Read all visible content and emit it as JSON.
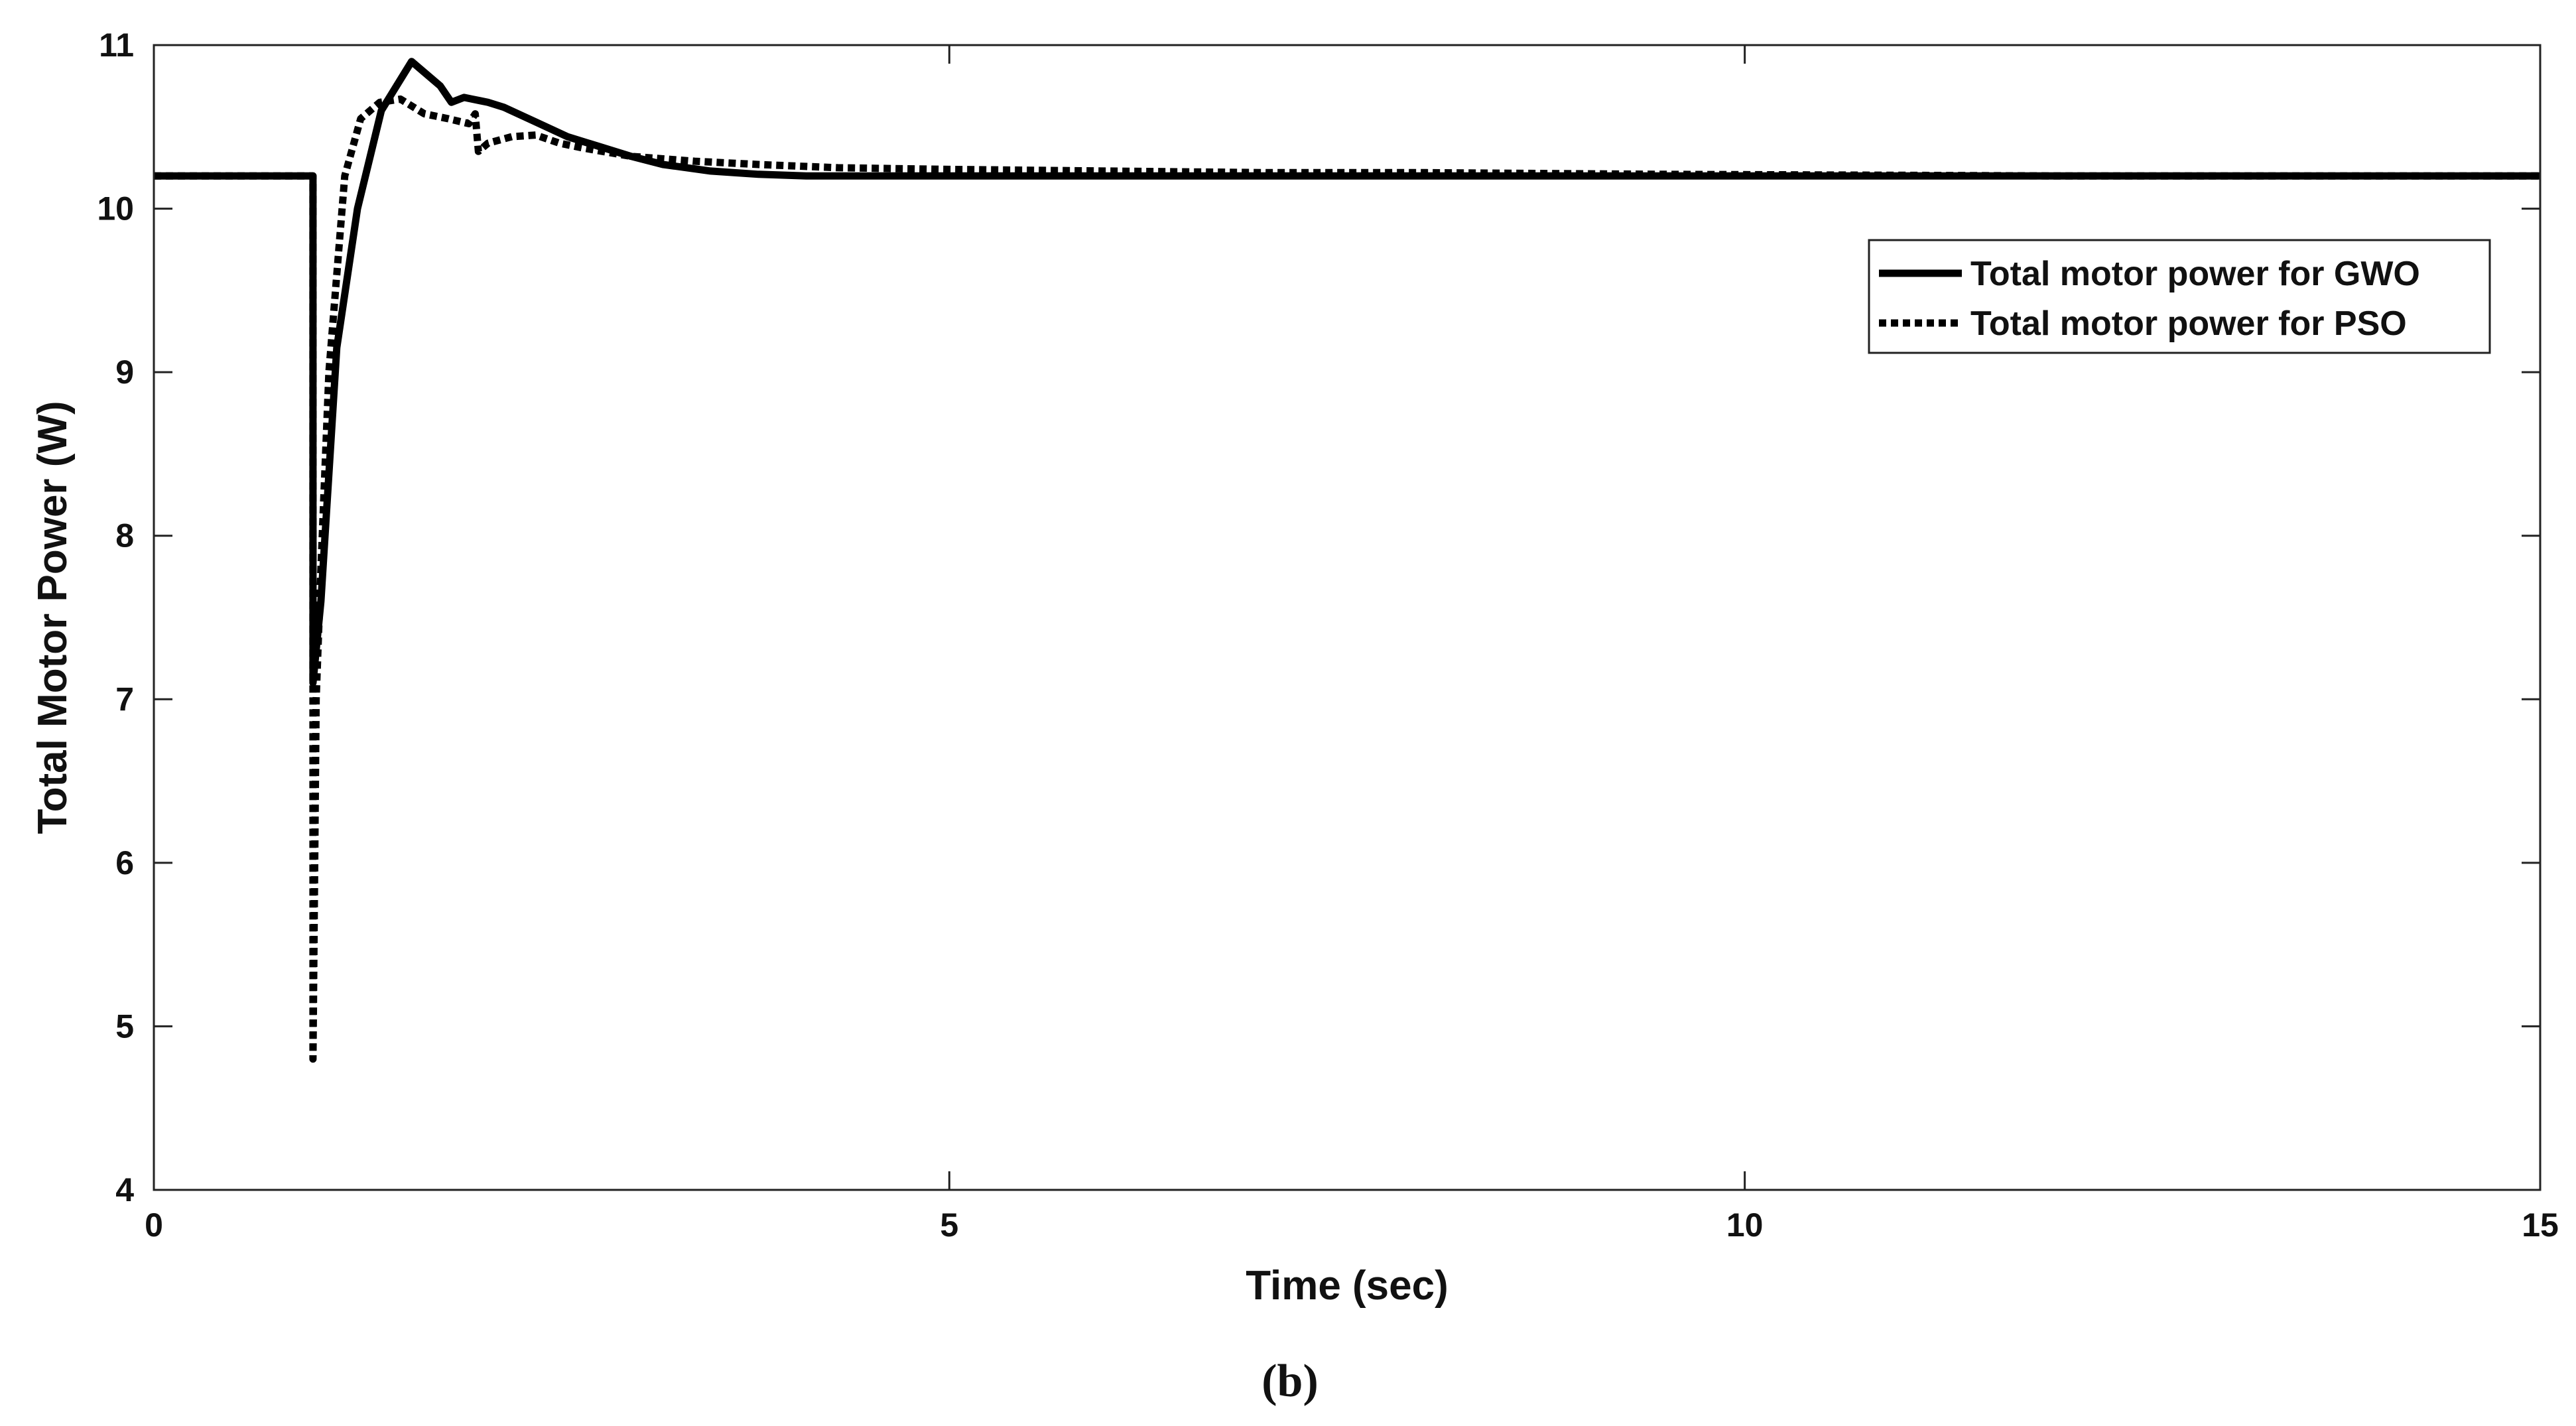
{
  "chart_data": {
    "type": "line",
    "title": "",
    "xlabel": "Time (sec)",
    "ylabel": "Total Motor Power (W)",
    "xlim": [
      0,
      15
    ],
    "ylim": [
      4,
      11
    ],
    "xticks": [
      0,
      5,
      10,
      15
    ],
    "yticks": [
      4,
      5,
      6,
      7,
      8,
      9,
      10,
      11
    ],
    "xtick_labels": [
      "0",
      "5",
      "10",
      "15"
    ],
    "ytick_labels": [
      "4",
      "5",
      "6",
      "7",
      "8",
      "9",
      "10",
      "11"
    ],
    "grid": false,
    "legend_position": "upper-right",
    "series": [
      {
        "name": "Total motor power for GWO",
        "style": "solid",
        "color": "#000000",
        "x": [
          0,
          1.0,
          1.0,
          1.05,
          1.15,
          1.28,
          1.43,
          1.62,
          1.8,
          1.87,
          1.95,
          2.0,
          2.05,
          2.1,
          2.2,
          2.4,
          2.6,
          2.8,
          3.0,
          3.2,
          3.5,
          3.8,
          4.1,
          4.5,
          5,
          6,
          8,
          10,
          12,
          15
        ],
        "y": [
          10.2,
          10.2,
          7.1,
          7.6,
          9.15,
          10.0,
          10.6,
          10.9,
          10.75,
          10.65,
          10.68,
          10.67,
          10.66,
          10.65,
          10.62,
          10.53,
          10.44,
          10.38,
          10.32,
          10.27,
          10.23,
          10.21,
          10.2,
          10.2,
          10.2,
          10.2,
          10.2,
          10.2,
          10.2,
          10.2
        ]
      },
      {
        "name": "Total motor power for PSO",
        "style": "dotted",
        "color": "#000000",
        "x": [
          0,
          1.0,
          1.0,
          1.02,
          1.05,
          1.1,
          1.2,
          1.3,
          1.42,
          1.55,
          1.7,
          1.85,
          1.98,
          2.02,
          2.04,
          2.1,
          2.25,
          2.4,
          2.55,
          2.7,
          3.0,
          3.4,
          3.8,
          4.3,
          5,
          6,
          7,
          8,
          9.5,
          12,
          15
        ],
        "y": [
          10.2,
          10.2,
          4.8,
          7.0,
          7.8,
          9.0,
          10.2,
          10.55,
          10.65,
          10.67,
          10.58,
          10.55,
          10.52,
          10.58,
          10.35,
          10.4,
          10.44,
          10.45,
          10.4,
          10.37,
          10.32,
          10.29,
          10.27,
          10.25,
          10.24,
          10.23,
          10.22,
          10.22,
          10.21,
          10.2,
          10.2
        ]
      }
    ]
  },
  "caption": "(b)"
}
